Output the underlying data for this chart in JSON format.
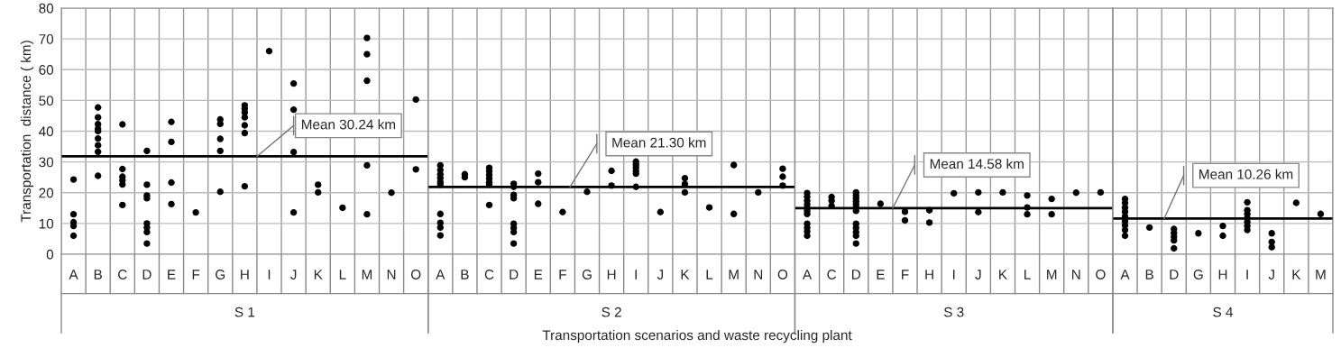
{
  "chart_data": [
    {
      "type": "scatter",
      "xlabel": "S 1",
      "ylabel": "Transportation  distance ( km)",
      "ylim": [
        0,
        80
      ],
      "yticks": [
        0,
        10,
        20,
        30,
        40,
        50,
        60,
        70,
        80
      ],
      "grid": true,
      "marker": "circle",
      "legend": false,
      "categories": [
        "A",
        "B",
        "C",
        "D",
        "E",
        "F",
        "G",
        "H",
        "I",
        "J",
        "K",
        "L",
        "M",
        "N",
        "O"
      ],
      "series": [
        {
          "color": "#000000",
          "x": [
            "A",
            "A",
            "A",
            "A",
            "A",
            "B",
            "B",
            "B",
            "B",
            "B",
            "B",
            "B",
            "B",
            "B",
            "C",
            "C",
            "C",
            "C",
            "C",
            "C",
            "D",
            "D",
            "D",
            "D",
            "D",
            "D",
            "D",
            "D",
            "E",
            "E",
            "E",
            "E",
            "F",
            "G",
            "G",
            "G",
            "G",
            "G",
            "H",
            "H",
            "H",
            "H",
            "H",
            "H",
            "H",
            "I",
            "J",
            "J",
            "J",
            "J",
            "K",
            "K",
            "L",
            "M",
            "M",
            "M",
            "M",
            "M",
            "N",
            "O",
            "O"
          ],
          "values": [
            24.3,
            13,
            10.4,
            9.2,
            6,
            47.7,
            44.5,
            42.3,
            40.8,
            40,
            37.6,
            35.4,
            33.3,
            25.5,
            42.2,
            27.7,
            25.2,
            24,
            22.7,
            16,
            33.6,
            22.6,
            19.1,
            18.2,
            10,
            8.7,
            7.2,
            3.5,
            43,
            36.5,
            23.3,
            16.3,
            13.6,
            43.8,
            42.4,
            37.5,
            33.6,
            20.3,
            48.4,
            47.3,
            46.1,
            44.5,
            41.9,
            39.4,
            22.1,
            66,
            55.5,
            47,
            33.2,
            13.6,
            22.6,
            20.1,
            15.1,
            70.3,
            65,
            56.4,
            28.9,
            13,
            20,
            50.3,
            27.6
          ]
        }
      ],
      "ref_lines": [
        {
          "axis": "y",
          "value": 31.8,
          "label": "Mean 30.24 km",
          "color": "#000000"
        }
      ],
      "annotations": [
        "Transportation scenarios and waste recycling plant"
      ]
    },
    {
      "type": "scatter",
      "xlabel": "S 2",
      "ylim": [
        0,
        80
      ],
      "yticks": [
        0,
        10,
        20,
        30,
        40,
        50,
        60,
        70,
        80
      ],
      "tick_labels": "x",
      "grid": true,
      "marker": "circle",
      "legend": false,
      "categories": [
        "A",
        "B",
        "C",
        "D",
        "E",
        "F",
        "G",
        "H",
        "I",
        "J",
        "K",
        "L",
        "M",
        "N",
        "O"
      ],
      "series": [
        {
          "color": "#000000",
          "x": [
            "A",
            "A",
            "A",
            "A",
            "A",
            "A",
            "A",
            "A",
            "A",
            "A",
            "B",
            "B",
            "C",
            "C",
            "C",
            "C",
            "C",
            "C",
            "C",
            "D",
            "D",
            "D",
            "D",
            "D",
            "D",
            "D",
            "D",
            "E",
            "E",
            "E",
            "F",
            "G",
            "H",
            "H",
            "I",
            "I",
            "I",
            "I",
            "I",
            "I",
            "J",
            "K",
            "K",
            "K",
            "L",
            "M",
            "M",
            "N",
            "O",
            "O",
            "O"
          ],
          "values": [
            28.9,
            27.4,
            26,
            24.8,
            23.5,
            22.6,
            13.1,
            10.2,
            8.7,
            6.1,
            26,
            25,
            28.1,
            27,
            25.8,
            24.6,
            23.4,
            22.6,
            16,
            22.9,
            21.9,
            19.3,
            18.2,
            9.9,
            8.6,
            7.2,
            3.5,
            26.2,
            23.4,
            16.4,
            13.7,
            20.3,
            27.1,
            22.3,
            30.1,
            29.1,
            28.2,
            27.1,
            26.2,
            21.9,
            13.7,
            24.7,
            22.8,
            20.1,
            15.2,
            29,
            13.1,
            20.1,
            27.8,
            25.2,
            22.3
          ]
        }
      ],
      "ref_lines": [
        {
          "axis": "y",
          "value": 21.9,
          "label": "Mean 21.30 km",
          "color": "#000000"
        }
      ]
    },
    {
      "type": "scatter",
      "xlabel": "S 3",
      "ylim": [
        0,
        80
      ],
      "yticks": [
        0,
        10,
        20,
        30,
        40,
        50,
        60,
        70,
        80
      ],
      "tick_labels": "x",
      "grid": true,
      "marker": "circle",
      "legend": false,
      "categories": [
        "A",
        "C",
        "D",
        "E",
        "F",
        "H",
        "I",
        "J",
        "K",
        "L",
        "M",
        "N",
        "O"
      ],
      "series": [
        {
          "color": "#000000",
          "x": [
            "A",
            "A",
            "A",
            "A",
            "A",
            "A",
            "A",
            "A",
            "A",
            "A",
            "A",
            "C",
            "C",
            "C",
            "D",
            "D",
            "D",
            "D",
            "D",
            "D",
            "D",
            "D",
            "D",
            "D",
            "D",
            "D",
            "E",
            "F",
            "F",
            "H",
            "H",
            "I",
            "J",
            "J",
            "K",
            "L",
            "L",
            "L",
            "M",
            "M",
            "N",
            "O"
          ],
          "values": [
            19.9,
            18.7,
            17.4,
            16.2,
            15,
            14.1,
            13.1,
            9.9,
            8.6,
            7.4,
            6,
            18.6,
            17.4,
            15.7,
            20.1,
            19.1,
            18.2,
            17.2,
            16.2,
            15.2,
            14.1,
            9.9,
            8.6,
            7.2,
            6,
            3.5,
            16.4,
            13.8,
            11,
            14.3,
            10.3,
            19.8,
            20.1,
            13.7,
            20.1,
            19.1,
            15.2,
            13,
            18,
            13,
            20,
            20.1
          ]
        }
      ],
      "ref_lines": [
        {
          "axis": "y",
          "value": 15,
          "label": "Mean 14.58 km",
          "color": "#000000"
        }
      ]
    },
    {
      "type": "scatter",
      "xlabel": "S 4",
      "ylim": [
        0,
        80
      ],
      "yticks": [
        0,
        10,
        20,
        30,
        40,
        50,
        60,
        70,
        80
      ],
      "tick_labels": "x",
      "grid": true,
      "marker": "circle",
      "legend": false,
      "categories": [
        "A",
        "B",
        "D",
        "G",
        "H",
        "I",
        "J",
        "K",
        "M"
      ],
      "series": [
        {
          "color": "#000000",
          "x": [
            "A",
            "A",
            "A",
            "A",
            "A",
            "A",
            "A",
            "A",
            "A",
            "B",
            "D",
            "D",
            "D",
            "D",
            "D",
            "G",
            "H",
            "H",
            "I",
            "I",
            "I",
            "I",
            "I",
            "I",
            "I",
            "J",
            "J",
            "J",
            "K",
            "M"
          ],
          "values": [
            18,
            16.7,
            15.2,
            13.8,
            12.3,
            10.8,
            9.4,
            7.9,
            6,
            8.7,
            8.2,
            6.9,
            5.7,
            4.5,
            1.9,
            6.8,
            9.2,
            6,
            16.9,
            14.3,
            13.1,
            11.8,
            10.5,
            9.2,
            7.9,
            6.8,
            4,
            2.3,
            16.7,
            13.1
          ]
        }
      ],
      "ref_lines": [
        {
          "axis": "y",
          "value": 11.6,
          "label": "Mean 10.26 km",
          "color": "#000000"
        }
      ]
    }
  ]
}
